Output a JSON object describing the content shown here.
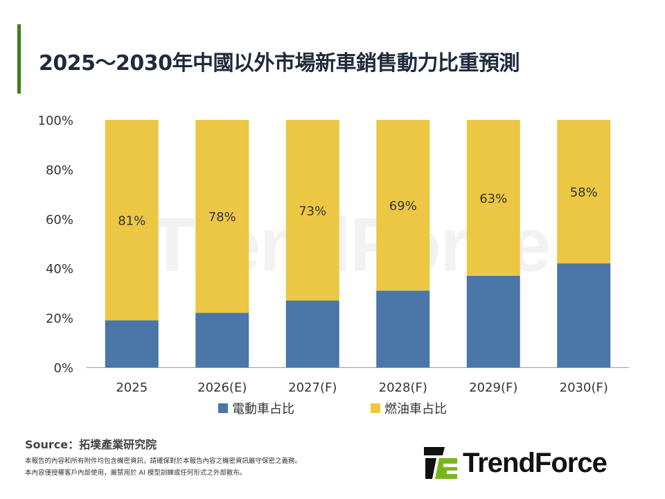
{
  "title": "2025～2030年中國以外市場新車銷售動力比重預測",
  "chart_data": {
    "type": "bar",
    "stacked": true,
    "categories": [
      "2025",
      "2026(E)",
      "2027(F)",
      "2028(F)",
      "2029(F)",
      "2030(F)"
    ],
    "series": [
      {
        "name": "電動車占比",
        "color": "#4a76a8",
        "values": [
          19,
          22,
          27,
          31,
          37,
          42
        ]
      },
      {
        "name": "燃油車占比",
        "color": "#ebc744",
        "values": [
          81,
          78,
          73,
          69,
          63,
          58
        ],
        "labels": [
          "81%",
          "78%",
          "73%",
          "69%",
          "63%",
          "58%"
        ]
      }
    ],
    "yticks": [
      "0%",
      "20%",
      "40%",
      "60%",
      "80%",
      "100%"
    ],
    "ylim": [
      0,
      100
    ],
    "grid": false,
    "legend": "bottom"
  },
  "source": "Source：拓墣產業研究院",
  "notes": [
    "本報告的內容和所有附件均包含機密資訊，請確保對於本報告內容之機密資訊嚴守保密之義務。",
    "本內容僅授權客戶內部使用，嚴禁用於 AI 模型訓練或任何形式之外部散布。"
  ],
  "logo": {
    "text": "TrendForce",
    "colors": {
      "dark": "#111111",
      "green": "#7ab51d"
    }
  },
  "watermark": "TrendForce"
}
